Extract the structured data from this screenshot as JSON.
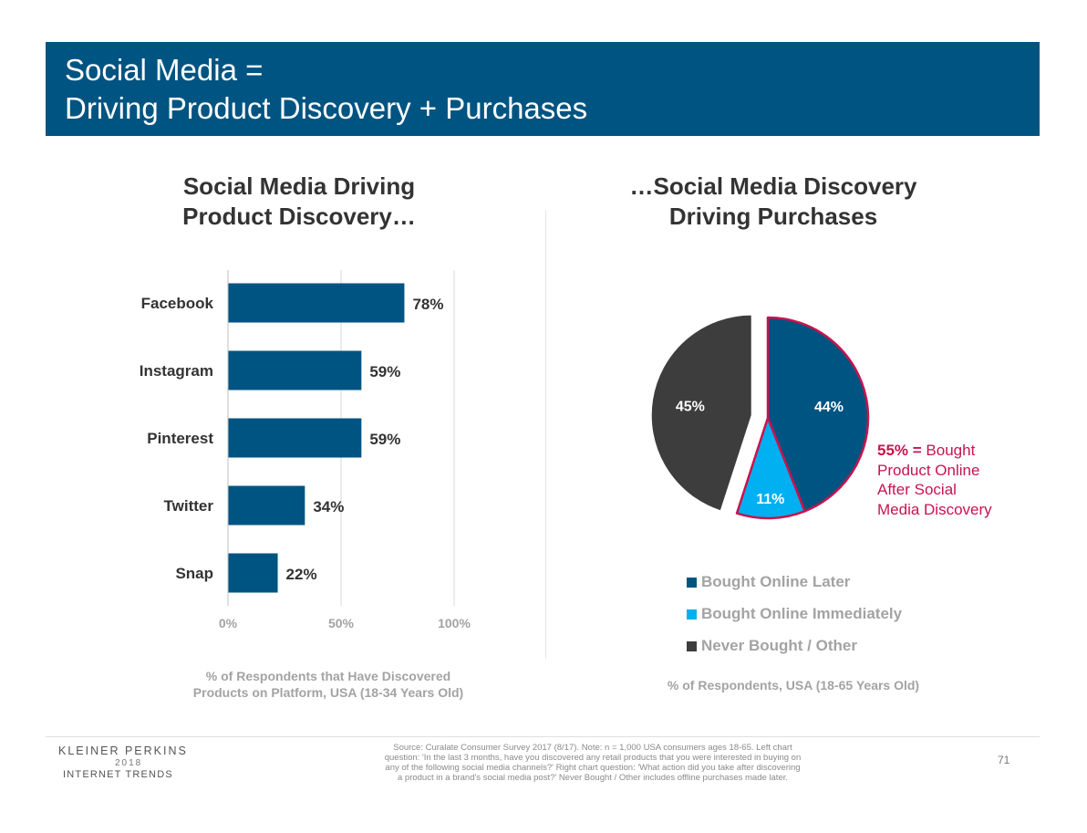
{
  "slide": {
    "title_line1": "Social Media =",
    "title_line2": "Driving Product Discovery + Purchases",
    "banner_color": "#005481"
  },
  "left": {
    "title_line1": "Social Media Driving",
    "title_line2": "Product Discovery…",
    "caption_line1": "% of Respondents that Have Discovered",
    "caption_line2": "Products on Platform, USA (18-34 Years Old)"
  },
  "right": {
    "title_line1": "…Social Media Discovery",
    "title_line2": "Driving Purchases",
    "caption": "% of Respondents, USA (18-65 Years Old)",
    "callout_bold": "55% =",
    "callout_text_1": "Bought",
    "callout_text_2": "Product Online",
    "callout_text_3": "After Social",
    "callout_text_4": "Media Discovery",
    "callout_color": "#c8134e"
  },
  "chart_data": [
    {
      "type": "bar",
      "orientation": "horizontal",
      "categories": [
        "Facebook",
        "Instagram",
        "Pinterest",
        "Twitter",
        "Snap"
      ],
      "values": [
        78,
        59,
        59,
        34,
        22
      ],
      "value_labels": [
        "78%",
        "59%",
        "59%",
        "34%",
        "22%"
      ],
      "xlim": [
        0,
        100
      ],
      "xticks": [
        "0%",
        "50%",
        "100%"
      ],
      "grid": true,
      "bar_color": "#005481"
    },
    {
      "type": "pie",
      "labels": [
        "Bought Online Later",
        "Bought Online Immediately",
        "Never Bought / Other"
      ],
      "values": [
        44,
        11,
        45
      ],
      "value_labels": [
        "44%",
        "11%",
        "45%"
      ],
      "colors": [
        "#005481",
        "#00b0f0",
        "#3d3d3d"
      ],
      "exploded": "Never Bought / Other",
      "highlight_outline_color": "#c8134e",
      "legend": "bottom"
    }
  ],
  "footer": {
    "brand_line1": "KLEINER PERKINS",
    "brand_line2": "2018",
    "brand_line3": "INTERNET TRENDS",
    "source_line1": "Source: Curalate Consumer Survey 2017 (8/17).  Note: n = 1,000 USA consumers ages 18-65. Left chart",
    "source_line2": "question: 'In the last 3 months, have you discovered any retail products that you were interested in buying on",
    "source_line3": "any of the following social media channels?' Right chart question: 'What action did you take after discovering",
    "source_line4": "a product in a brand's social media post?' Never Bought / Other includes offline purchases made later.",
    "page_number": "71"
  }
}
